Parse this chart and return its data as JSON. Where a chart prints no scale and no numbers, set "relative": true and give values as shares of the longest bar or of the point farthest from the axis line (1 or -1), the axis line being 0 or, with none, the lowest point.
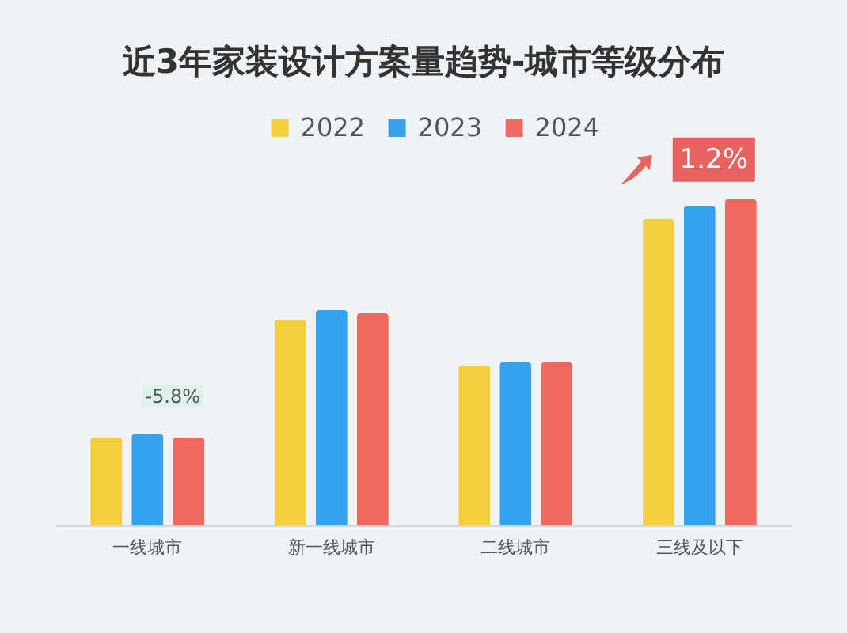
{
  "chart_data": {
    "type": "bar",
    "title": "近3年家装设计方案量趋势-城市等级分布",
    "categories": [
      "一线城市",
      "新一线城市",
      "二线城市",
      "三线及以下"
    ],
    "series": [
      {
        "name": "2022",
        "color": "#f3cf3e",
        "values": [
          0.27,
          0.63,
          0.49,
          0.94
        ]
      },
      {
        "name": "2023",
        "color": "#34a2ee",
        "values": [
          0.28,
          0.66,
          0.5,
          0.98
        ]
      },
      {
        "name": "2024",
        "color": "#ee6a61",
        "values": [
          0.27,
          0.65,
          0.5,
          1
        ]
      }
    ],
    "relative": true,
    "legend": "top",
    "grid": false,
    "annotations": [
      "-5.8%",
      "1.2%"
    ]
  }
}
